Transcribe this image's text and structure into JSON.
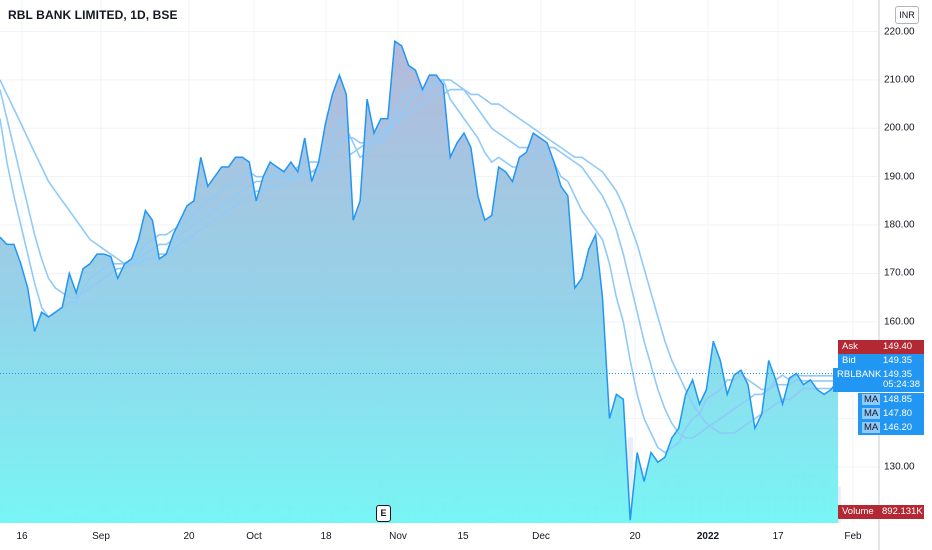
{
  "header": {
    "title": "RBL BANK LIMITED, 1D, BSE",
    "currency": "INR"
  },
  "earnings_marker": "E",
  "colors": {
    "line": "#2196f3",
    "area_top": "#aab8d9",
    "area_bottom": "#7af2f2",
    "ma": "#90caf9",
    "ask": "#b22833",
    "bid": "#2196f3",
    "volume": "#b22833"
  },
  "price_tags": {
    "ask_label": "Ask",
    "ask_value": "149.40",
    "bid_label": "Bid",
    "bid_value": "149.35",
    "symbol_label": "RBLBANK",
    "symbol_value": "149.35",
    "countdown": "05:24:38",
    "ma_label": "MA",
    "ma1_value": "148.85",
    "ma2_value": "147.80",
    "ma3_value": "146.20",
    "volume_label": "Volume",
    "volume_value": "892.131K"
  },
  "chart_data": {
    "type": "area",
    "title": "RBL BANK LIMITED, 1D, BSE",
    "ylim": [
      124,
      224
    ],
    "y_ticks": [
      "130.00",
      "140.00",
      "150.00",
      "160.00",
      "170.00",
      "180.00",
      "190.00",
      "200.00",
      "210.00",
      "220.00"
    ],
    "x_ticks": [
      "16",
      "Sep",
      "20",
      "Oct",
      "18",
      "Nov",
      "15",
      "Dec",
      "20",
      "2022",
      "17",
      "Feb"
    ],
    "series": [
      {
        "name": "RBLBANK",
        "values": [
          177.5,
          176,
          176,
          172,
          167,
          158,
          162,
          161,
          162,
          163,
          170,
          166,
          171,
          172,
          174,
          174,
          173.5,
          169,
          172,
          173,
          177,
          183,
          181,
          173,
          174,
          178,
          181,
          184,
          185,
          194,
          188,
          190,
          192,
          192,
          194,
          194,
          193,
          185,
          190,
          193,
          192,
          191,
          193,
          191,
          198,
          189,
          193,
          201,
          207,
          211,
          207,
          181,
          185,
          206,
          199,
          202,
          202,
          218,
          217,
          213,
          212,
          208,
          211,
          211,
          209,
          194,
          197,
          199,
          196,
          186,
          181,
          182,
          192,
          191,
          189,
          194,
          195,
          199,
          198,
          197,
          193,
          188,
          186,
          167,
          169,
          175,
          178,
          165,
          140,
          145,
          144,
          119,
          133,
          127,
          133,
          131,
          132,
          136,
          138,
          145,
          148,
          143,
          146,
          156,
          152,
          145,
          149,
          150,
          147,
          138,
          141,
          152,
          148,
          143,
          148.4,
          149.35,
          147,
          148,
          146,
          145,
          146,
          148
        ]
      },
      {
        "name": "MA 1",
        "values": [
          202,
          193,
          186,
          180,
          174,
          168,
          163,
          161,
          162,
          163,
          164,
          164,
          167,
          169,
          170,
          171,
          172,
          172,
          172,
          173,
          174,
          176,
          177,
          178,
          178,
          179,
          180,
          181,
          182,
          184,
          185,
          186,
          187,
          188,
          189,
          190,
          191,
          190,
          190,
          190,
          191,
          191,
          191,
          192,
          193,
          193,
          193,
          195,
          198,
          202,
          200,
          197,
          194,
          195,
          197,
          197,
          199,
          203,
          206,
          208,
          208,
          207,
          208,
          209,
          210,
          206,
          204,
          202,
          200,
          198,
          195,
          193,
          194,
          193,
          192,
          192,
          193,
          194,
          195,
          194,
          193,
          190,
          189,
          186,
          183,
          181,
          179,
          177,
          172,
          165,
          160,
          152,
          145,
          140,
          137,
          134,
          133,
          134,
          135,
          138,
          140,
          141,
          144,
          145,
          146,
          148,
          148,
          149,
          148,
          147,
          146,
          146,
          148,
          149,
          148,
          149,
          148.85,
          148.85,
          148.85,
          148.85,
          148.85,
          148.85
        ]
      },
      {
        "name": "MA 2",
        "values": [
          208,
          202,
          196,
          190,
          184,
          178,
          173,
          169,
          167,
          166,
          165,
          165,
          166,
          167,
          168,
          169,
          170,
          171,
          171,
          172,
          173,
          174,
          175,
          176,
          176,
          177,
          178,
          179,
          180,
          181,
          182,
          183,
          184,
          185,
          186,
          187,
          188,
          189,
          189,
          189,
          190,
          190,
          190,
          190,
          191,
          191,
          192,
          193,
          195,
          197,
          198,
          198,
          197,
          197,
          198,
          198,
          199,
          201,
          203,
          205,
          207,
          208,
          209,
          210,
          210,
          210,
          209,
          208,
          206,
          204,
          202,
          200,
          199,
          198,
          197,
          196,
          196,
          196,
          196,
          196,
          196,
          195,
          194,
          193,
          192,
          190,
          188,
          186,
          183,
          179,
          174,
          168,
          162,
          156,
          151,
          146,
          142,
          139,
          137,
          136,
          136,
          137,
          138,
          139,
          140,
          141,
          142,
          143,
          144,
          145,
          145,
          146,
          147,
          147,
          147,
          148,
          147.8,
          147.8,
          147.8,
          147.8,
          147.8,
          147.8
        ]
      },
      {
        "name": "MA 3",
        "values": [
          210,
          207,
          204,
          201,
          198,
          195,
          192,
          189,
          187,
          185,
          183,
          181,
          179,
          177,
          176,
          175,
          174,
          173,
          172,
          172,
          172,
          173,
          173,
          174,
          174,
          175,
          176,
          177,
          178,
          179,
          180,
          181,
          182,
          183,
          184,
          185,
          186,
          187,
          187,
          188,
          188,
          189,
          189,
          190,
          190,
          191,
          191,
          192,
          192,
          193,
          194,
          195,
          196,
          197,
          198,
          199,
          200,
          201,
          202,
          203,
          204,
          205,
          206,
          207,
          207,
          208,
          208,
          208,
          207,
          207,
          206,
          205,
          205,
          204,
          203,
          202,
          201,
          200,
          199,
          198,
          197,
          196,
          195,
          194,
          194,
          193,
          192,
          191,
          189,
          187,
          184,
          180,
          176,
          171,
          166,
          161,
          156,
          152,
          149,
          146,
          143,
          141,
          139,
          138,
          137,
          137,
          137,
          138,
          139,
          140,
          141,
          142,
          143,
          144,
          144,
          145,
          146.2,
          146.2,
          146.2,
          146.2,
          146.2,
          146.2
        ]
      }
    ],
    "volume_series": {
      "name": "Volume",
      "values": [
        6,
        4,
        5,
        3,
        2,
        3,
        4,
        5,
        3,
        4,
        2,
        3,
        2,
        4,
        3,
        5,
        2,
        3,
        4,
        3,
        5,
        4,
        6,
        3,
        8,
        4,
        2,
        6,
        4,
        5,
        3,
        4,
        10,
        3,
        5,
        3,
        4,
        7,
        3,
        4,
        5,
        2,
        6,
        3,
        4,
        5,
        6,
        3,
        4,
        5,
        6,
        3,
        4,
        5,
        6,
        14,
        8,
        9,
        6,
        5,
        4,
        8,
        6,
        4,
        7,
        6,
        10,
        6,
        5,
        5,
        4,
        2,
        3,
        4,
        5,
        4,
        6,
        5,
        4,
        3,
        5,
        4,
        3,
        7,
        4,
        5,
        6,
        8,
        36,
        32,
        26,
        28,
        20,
        18,
        12,
        10,
        14,
        12,
        16,
        14,
        10,
        8,
        9,
        10,
        12,
        8,
        9,
        10,
        8,
        11,
        14,
        12,
        10,
        9,
        13,
        16,
        18,
        16,
        12,
        14,
        12,
        12
      ]
    }
  }
}
